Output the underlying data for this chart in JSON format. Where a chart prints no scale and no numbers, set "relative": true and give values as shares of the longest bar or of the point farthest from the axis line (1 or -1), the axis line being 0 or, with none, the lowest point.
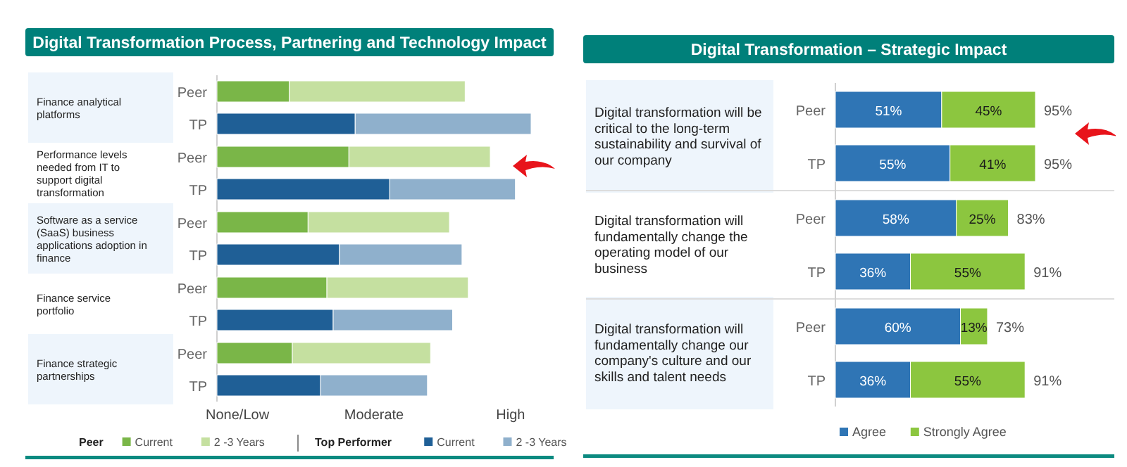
{
  "chart_data": [
    {
      "type": "bar",
      "orientation": "horizontal",
      "stacked": true,
      "title": "Digital Transformation Process, Partnering and Technology Impact",
      "categories": [
        "Peer",
        "TP",
        "Peer",
        "TP",
        "Peer",
        "TP",
        "Peer",
        "TP",
        "Peer",
        "TP"
      ],
      "relative": true,
      "legend": "bottom",
      "annotations": [
        "Finance analytical platforms",
        "Performance levels needed from IT to support digital transformation",
        "Software as a service (SaaS) business applications adoption in finance",
        "Finance service portfolio",
        "Finance strategic partnerships",
        "Peer",
        "Top Performer",
        "None/Low",
        "Moderate",
        "High"
      ],
      "series": [
        {
          "name": "Current",
          "color": "#7ab648",
          "values": [
            0.23,
            null,
            0.42,
            null,
            0.29,
            null,
            0.35,
            null,
            0.24,
            null
          ]
        },
        {
          "name": "2 -3 Years",
          "color": "#c5e0a0",
          "values": [
            0.56,
            null,
            0.45,
            null,
            0.45,
            null,
            0.45,
            null,
            0.44,
            null
          ]
        },
        {
          "name": "Current",
          "color": "#1f5f96",
          "values": [
            null,
            0.44,
            null,
            0.55,
            null,
            0.39,
            null,
            0.37,
            null,
            0.33
          ]
        },
        {
          "name": "2 -3 Years",
          "color": "#8fb0cc",
          "values": [
            null,
            0.56,
            null,
            0.4,
            null,
            0.39,
            null,
            0.38,
            null,
            0.34
          ]
        }
      ]
    },
    {
      "type": "bar",
      "orientation": "horizontal",
      "stacked": true,
      "title": "Digital Transformation – Strategic Impact",
      "categories": [
        "Peer",
        "TP",
        "Peer",
        "TP",
        "Peer",
        "TP"
      ],
      "legend": "bottom",
      "data_labels": false,
      "annotations": [
        "Digital transformation will be critical to the long-term sustainability and survival of our company",
        "Digital transformation will fundamentally change the operating model of our business",
        "Digital transformation will fundamentally change our company's culture and our skills and talent needs"
      ],
      "totals": [
        "95%",
        "95%",
        "83%",
        "91%",
        "73%",
        "91%"
      ],
      "series": [
        {
          "name": "Agree",
          "color": "#2f75b5",
          "values": [
            51,
            55,
            58,
            36,
            60,
            36
          ],
          "value_labels": [
            "51%",
            "55%",
            "58%",
            "36%",
            "60%",
            "36%"
          ]
        },
        {
          "name": "Strongly Agree",
          "color": "#8cc63f",
          "values": [
            45,
            41,
            25,
            55,
            13,
            55
          ],
          "value_labels": [
            "45%",
            "41%",
            "25%",
            "55%",
            "13%",
            "55%"
          ]
        }
      ]
    }
  ]
}
